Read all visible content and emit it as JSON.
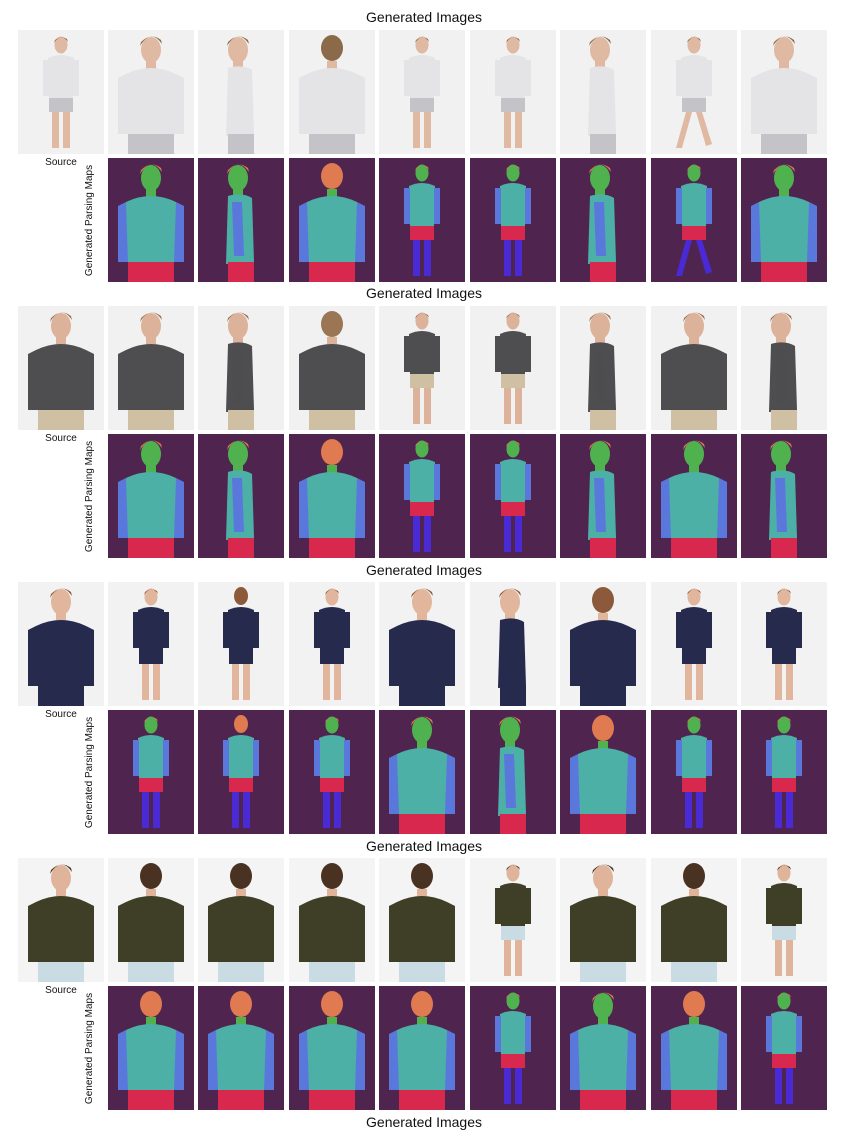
{
  "figure": {
    "groups": [
      {
        "top_caption": "Generated Images",
        "source_label": "Source",
        "maps_label": "Generated Parsing Maps",
        "subject": {
          "top_color": "#e4e4e6",
          "bottom_color": "#c4c4c8",
          "hair_color": "#8a6a48",
          "skin_color": "#e0b9a2",
          "bg_color": "#f1f1f2",
          "style": "male-shirt-shorts"
        },
        "views": [
          "source",
          "front-close",
          "side-close",
          "back-close",
          "front-full",
          "front-full",
          "side-close",
          "walk-full",
          "front-close"
        ],
        "parsing_views": [
          "front-close",
          "side-close",
          "back-close",
          "front-full",
          "front-full",
          "side-close",
          "walk-full",
          "front-close"
        ]
      },
      {
        "top_caption": "Generated Images",
        "source_label": "Source",
        "maps_label": "Generated Parsing Maps",
        "subject": {
          "top_color": "#4e4e50",
          "bottom_color": "#cfbfa3",
          "hair_color": "#9a7654",
          "skin_color": "#dcb29a",
          "bg_color": "#f1f1f2",
          "style": "male-tee-shorts"
        },
        "views": [
          "source",
          "front-close",
          "side-close",
          "back-close",
          "front-full",
          "front-full",
          "side-close",
          "front-close",
          "side-close"
        ],
        "parsing_views": [
          "front-close",
          "side-close",
          "back-close",
          "front-full",
          "front-full",
          "side-close",
          "front-close",
          "side-close"
        ]
      },
      {
        "top_caption": "Generated Images",
        "source_label": "Source",
        "maps_label": "Generated Parsing Maps",
        "subject": {
          "top_color": "#262b4e",
          "bottom_color": "#262b4e",
          "hair_color": "#8c5a3a",
          "skin_color": "#e2b69c",
          "bg_color": "#f2f2f3",
          "style": "female-dress"
        },
        "views": [
          "source",
          "front-full",
          "back-full",
          "front-full",
          "front-close",
          "side-close",
          "back-close",
          "front-full",
          "front-full"
        ],
        "parsing_views": [
          "front-full",
          "back-full",
          "front-full",
          "front-close",
          "side-close",
          "back-close",
          "front-full",
          "front-full"
        ]
      },
      {
        "top_caption": "Generated Images",
        "source_label": "Source",
        "maps_label": "Generated Parsing Maps",
        "subject": {
          "top_color": "#3f3e26",
          "bottom_color": "#c9dce4",
          "hair_color": "#4a3222",
          "skin_color": "#e0b49a",
          "bg_color": "#f4f4f5",
          "style": "female-tank-jeans"
        },
        "views": [
          "source",
          "back-close",
          "back-close",
          "back-close",
          "back-close",
          "front-full",
          "front-close",
          "back-close",
          "front-full"
        ],
        "parsing_views": [
          "back-close",
          "back-close",
          "back-close",
          "back-close",
          "front-full",
          "front-close",
          "back-close",
          "front-full"
        ]
      }
    ],
    "bottom_caption": "Generated Images",
    "parsing_palette": {
      "background": "#4f2550",
      "hair": "#e07a50",
      "face": "#4fb24f",
      "upper": "#4db0a6",
      "arms": "#5a78dc",
      "lower": "#d8284e",
      "legs": "#4a2ad4"
    }
  }
}
